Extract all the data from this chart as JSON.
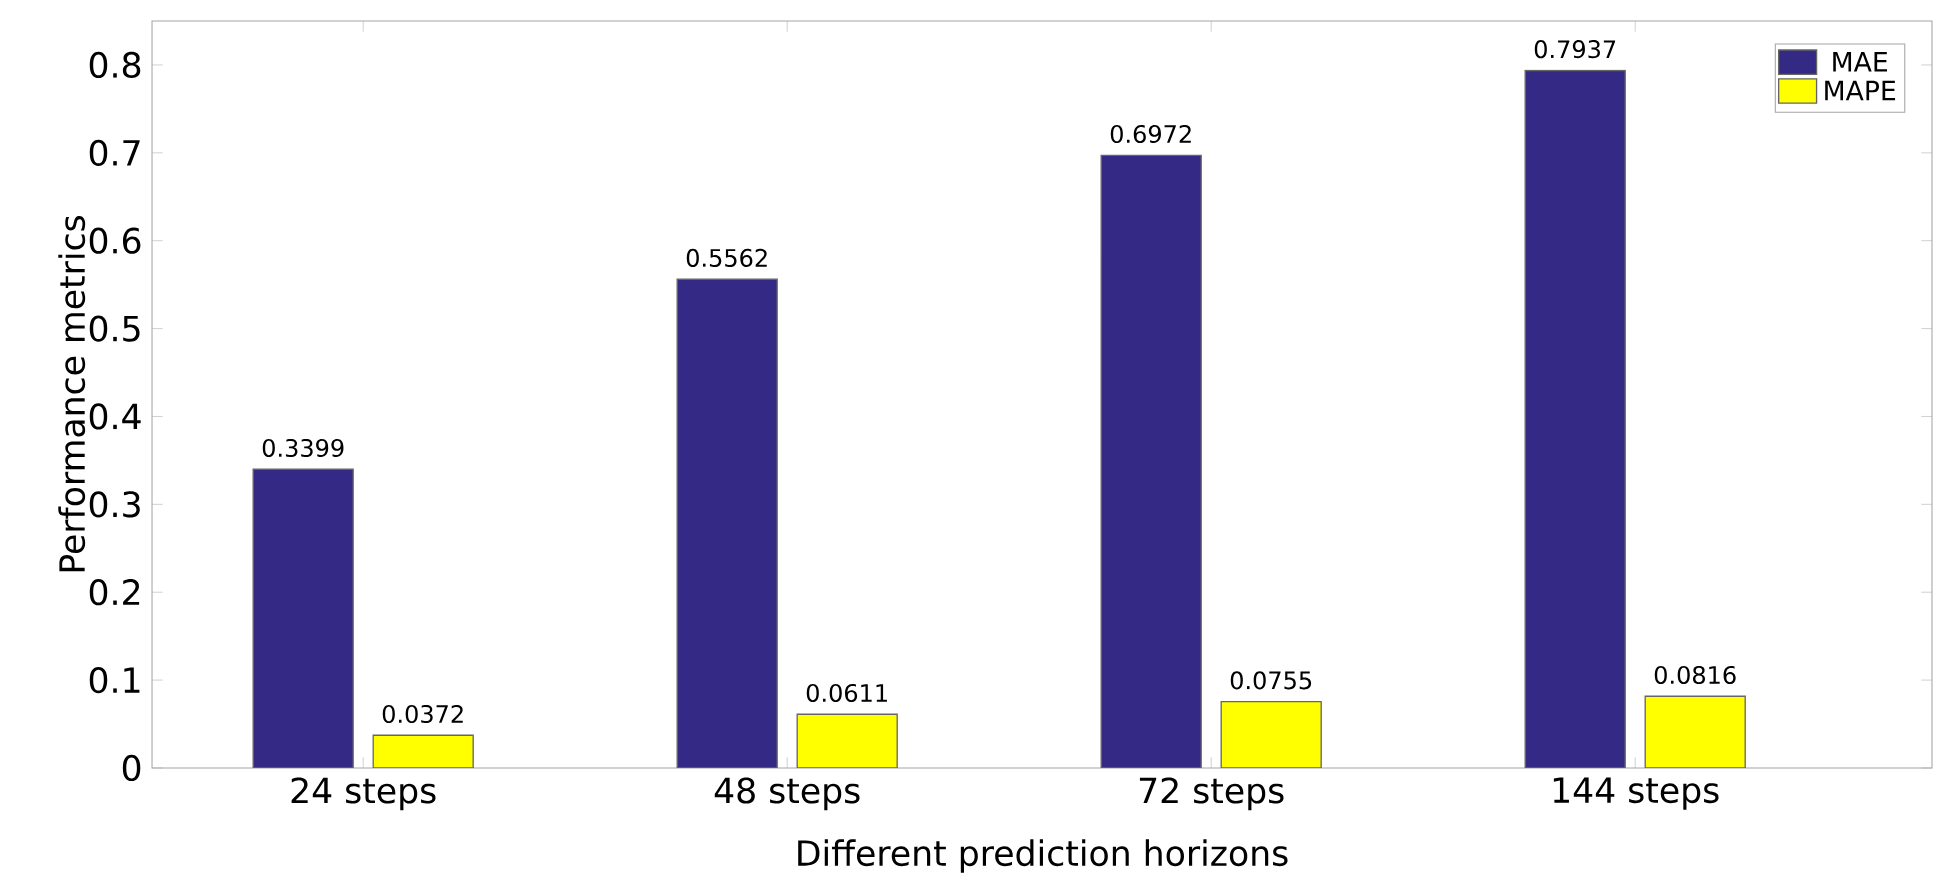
{
  "chart_data": {
    "type": "bar",
    "xlabel": "Different prediction horizons",
    "ylabel": "Performance metrics",
    "categories": [
      "24 steps",
      "48 steps",
      "72 steps",
      "144 steps"
    ],
    "series": [
      {
        "name": "MAE",
        "color": "#342a85",
        "values": [
          0.3399,
          0.5562,
          0.6972,
          0.7937
        ]
      },
      {
        "name": "MAPE",
        "color": "#ffff00",
        "values": [
          0.0372,
          0.0611,
          0.0755,
          0.0816
        ]
      }
    ],
    "ylim": [
      0,
      0.85
    ],
    "yticks": [
      0,
      0.1,
      0.2,
      0.3,
      0.4,
      0.5,
      0.6,
      0.7,
      0.8
    ],
    "data_labels": true,
    "legend": "top right",
    "grid": false
  }
}
